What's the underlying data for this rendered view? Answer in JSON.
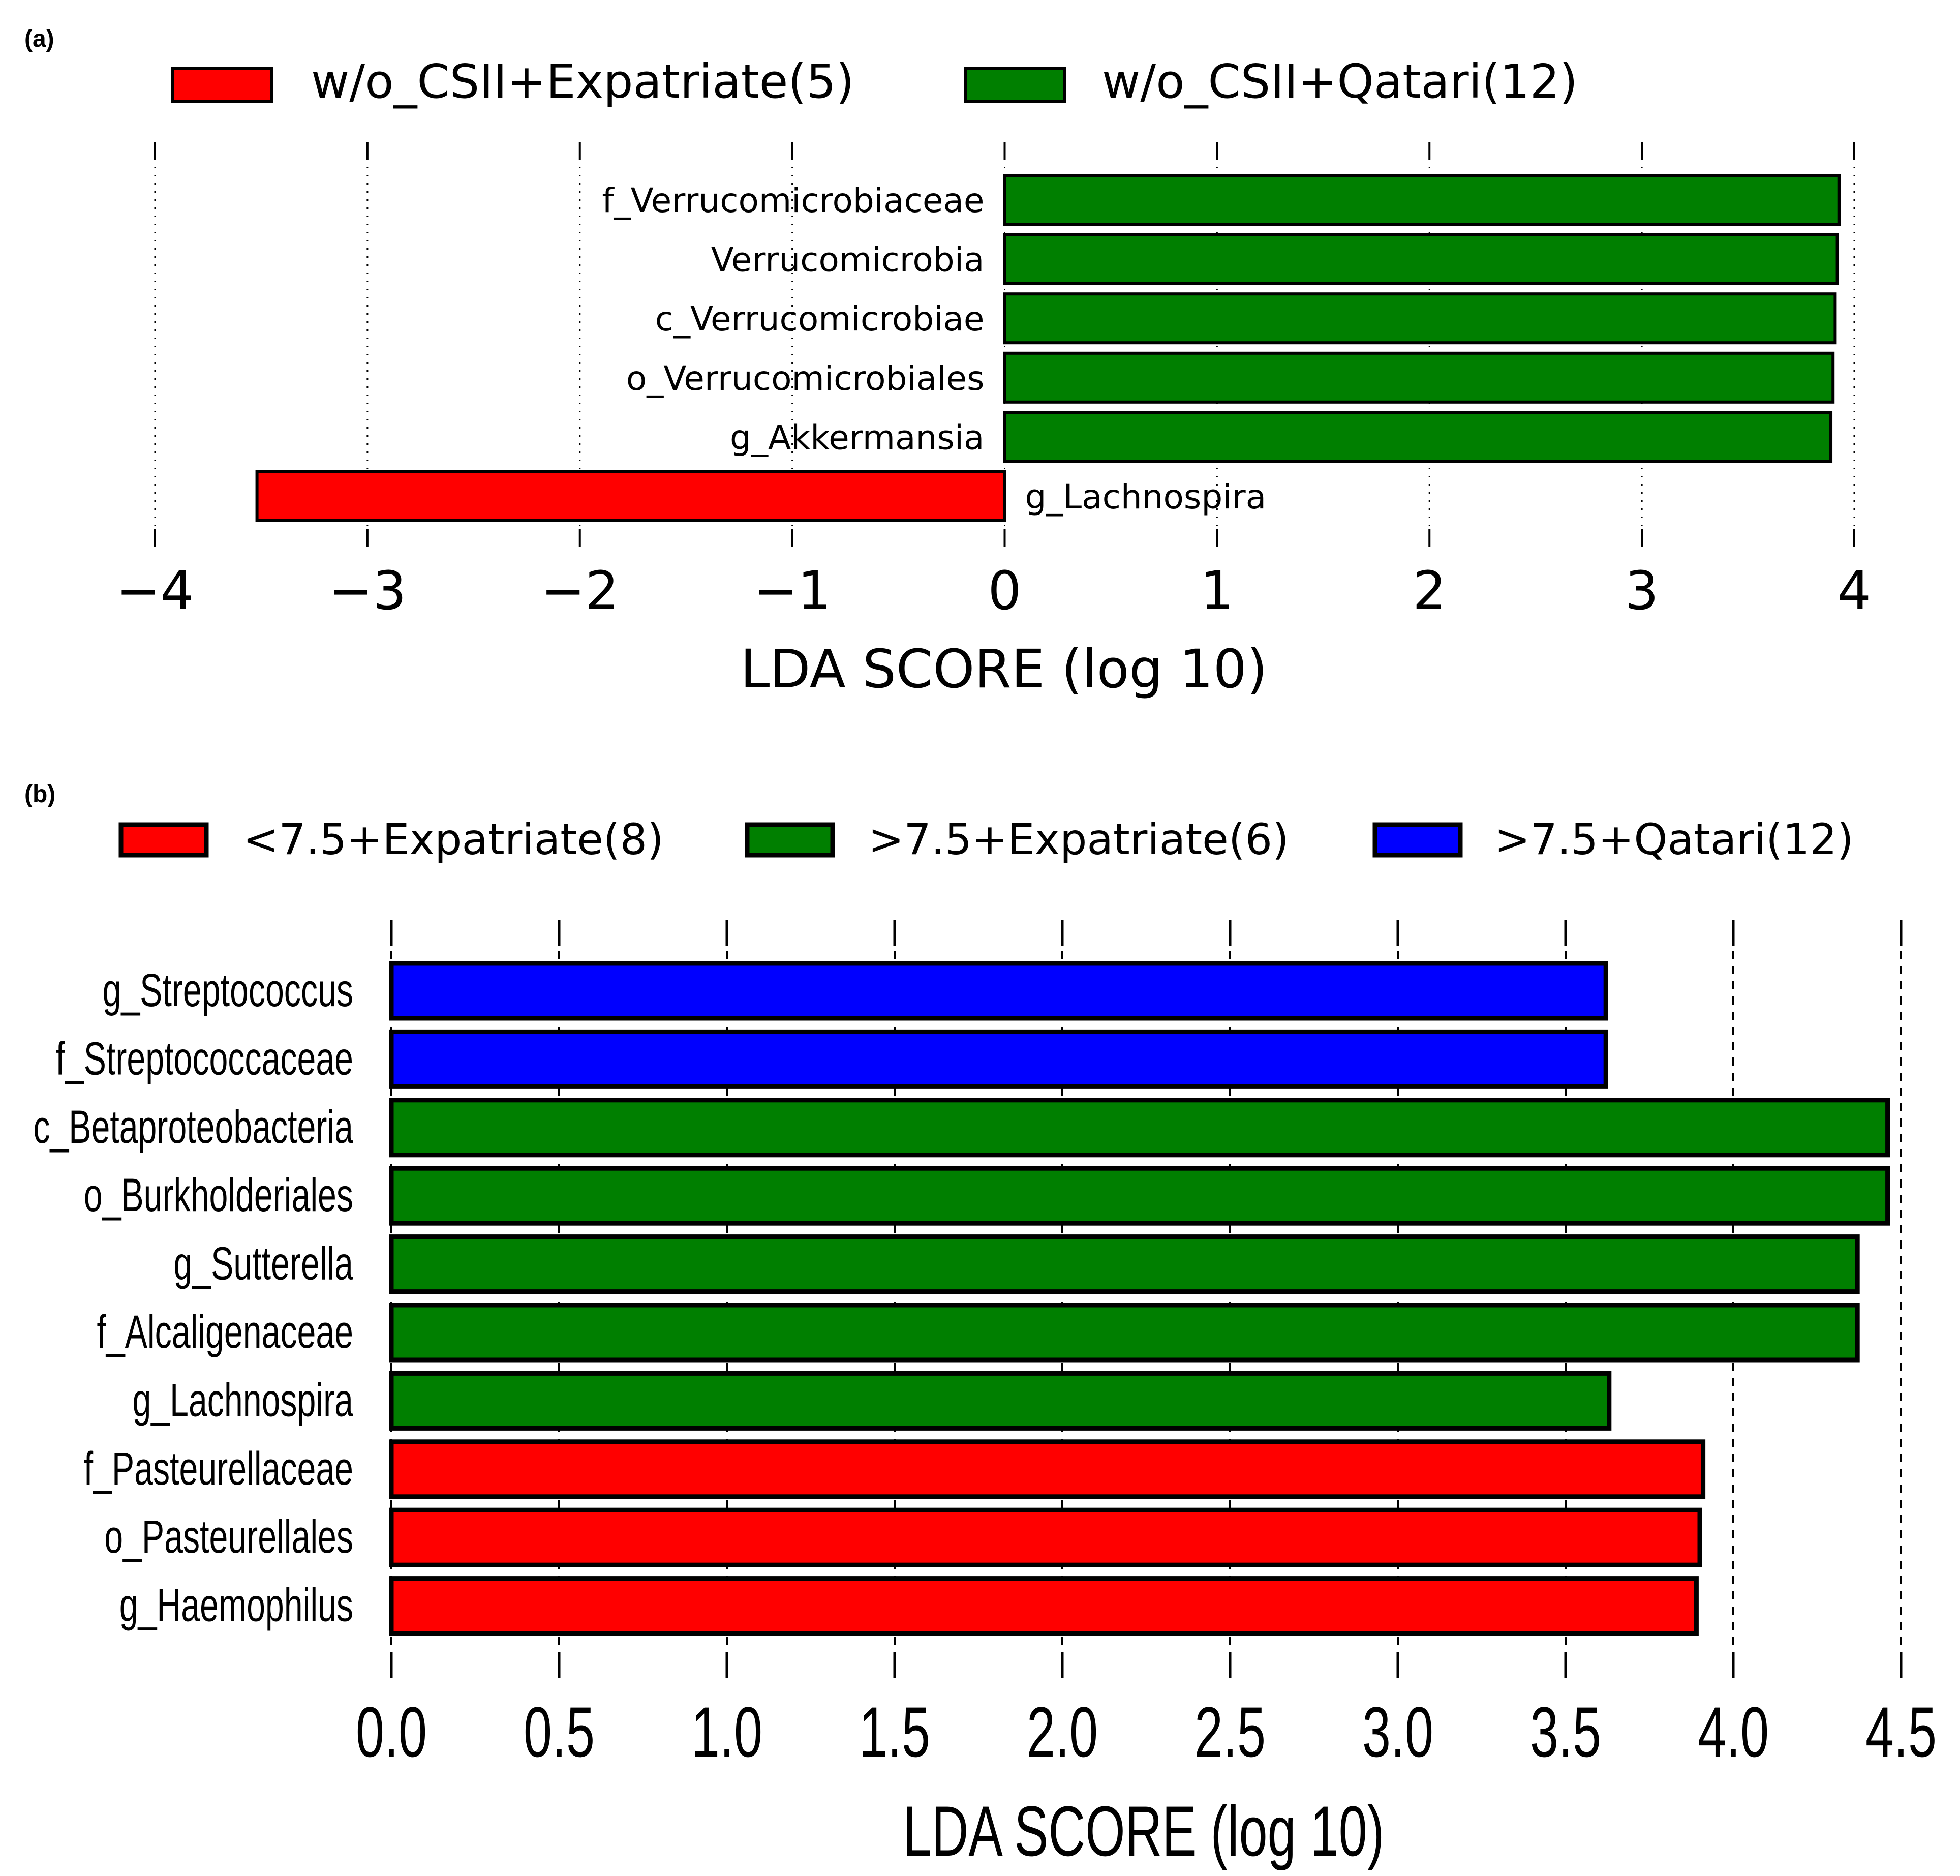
{
  "figure": {
    "panel_a_label": "(a)",
    "panel_b_label": "(b)"
  },
  "colors": {
    "red": "#ff0000",
    "green": "#007f00",
    "blue": "#0000ff"
  },
  "chart_data": [
    {
      "type": "bar",
      "orientation": "horizontal",
      "panel": "(a)",
      "xlabel": "LDA SCORE (log 10)",
      "xlim": [
        -4,
        4
      ],
      "xticks": [
        -4,
        -3,
        -2,
        -1,
        0,
        1,
        2,
        3,
        4
      ],
      "xtick_labels": [
        "−4",
        "−3",
        "−2",
        "−1",
        "0",
        "1",
        "2",
        "3",
        "4"
      ],
      "grid": true,
      "legend_position": "top",
      "legend": [
        {
          "label": "w/o_CSII+Expatriate(5)",
          "color": "#ff0000"
        },
        {
          "label": "w/o_CSII+Qatari(12)",
          "color": "#007f00"
        }
      ],
      "bars": [
        {
          "label": "f_Verrucomicrobiaceae",
          "value": 3.93,
          "group": "w/o_CSII+Qatari(12)",
          "color": "#007f00"
        },
        {
          "label": "Verrucomicrobia",
          "value": 3.92,
          "group": "w/o_CSII+Qatari(12)",
          "color": "#007f00"
        },
        {
          "label": "c_Verrucomicrobiae",
          "value": 3.91,
          "group": "w/o_CSII+Qatari(12)",
          "color": "#007f00"
        },
        {
          "label": "o_Verrucomicrobiales",
          "value": 3.9,
          "group": "w/o_CSII+Qatari(12)",
          "color": "#007f00"
        },
        {
          "label": "g_Akkermansia",
          "value": 3.89,
          "group": "w/o_CSII+Qatari(12)",
          "color": "#007f00"
        },
        {
          "label": "g_Lachnospira",
          "value": -3.52,
          "group": "w/o_CSII+Expatriate(5)",
          "color": "#ff0000"
        }
      ]
    },
    {
      "type": "bar",
      "orientation": "horizontal",
      "panel": "(b)",
      "xlabel": "LDA SCORE (log 10)",
      "xlim": [
        0,
        4.5
      ],
      "xticks": [
        0,
        0.5,
        1,
        1.5,
        2,
        2.5,
        3,
        3.5,
        4,
        4.5
      ],
      "xtick_labels": [
        "0.0",
        "0.5",
        "1.0",
        "1.5",
        "2.0",
        "2.5",
        "3.0",
        "3.5",
        "4.0",
        "4.5"
      ],
      "grid": true,
      "legend_position": "top",
      "legend": [
        {
          "label": "<7.5+Expatriate(8)",
          "color": "#ff0000"
        },
        {
          "label": ">7.5+Expatriate(6)",
          "color": "#007f00"
        },
        {
          "label": ">7.5+Qatari(12)",
          "color": "#0000ff"
        }
      ],
      "bars": [
        {
          "label": "g_Streptococcus",
          "value": 3.62,
          "group": ">7.5+Qatari(12)",
          "color": "#0000ff"
        },
        {
          "label": "f_Streptococcaceae",
          "value": 3.62,
          "group": ">7.5+Qatari(12)",
          "color": "#0000ff"
        },
        {
          "label": "c_Betaproteobacteria",
          "value": 4.46,
          "group": ">7.5+Expatriate(6)",
          "color": "#007f00"
        },
        {
          "label": "o_Burkholderiales",
          "value": 4.46,
          "group": ">7.5+Expatriate(6)",
          "color": "#007f00"
        },
        {
          "label": "g_Sutterella",
          "value": 4.37,
          "group": ">7.5+Expatriate(6)",
          "color": "#007f00"
        },
        {
          "label": "f_Alcaligenaceae",
          "value": 4.37,
          "group": ">7.5+Expatriate(6)",
          "color": "#007f00"
        },
        {
          "label": "g_Lachnospira",
          "value": 3.63,
          "group": ">7.5+Expatriate(6)",
          "color": "#007f00"
        },
        {
          "label": "f_Pasteurellaceae",
          "value": 3.91,
          "group": "<7.5+Expatriate(8)",
          "color": "#ff0000"
        },
        {
          "label": "o_Pasteurellales",
          "value": 3.9,
          "group": "<7.5+Expatriate(8)",
          "color": "#ff0000"
        },
        {
          "label": "g_Haemophilus",
          "value": 3.89,
          "group": "<7.5+Expatriate(8)",
          "color": "#ff0000"
        }
      ]
    }
  ]
}
